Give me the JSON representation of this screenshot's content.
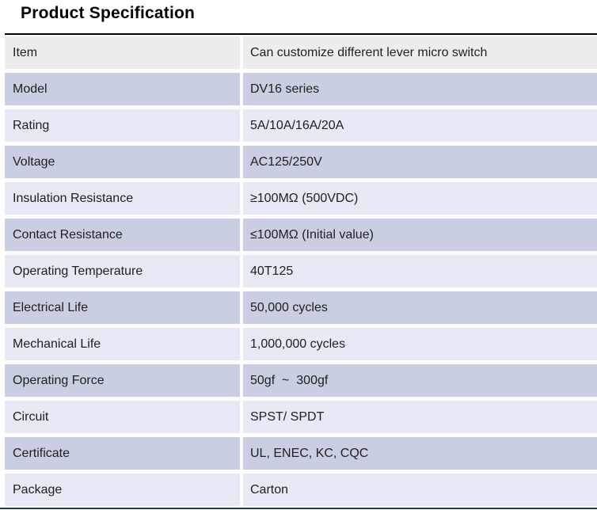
{
  "page": {
    "title": "Product Specification"
  },
  "table": {
    "rows": [
      {
        "label": "Item",
        "value": "Can customize different lever micro switch"
      },
      {
        "label": "Model",
        "value": "DV16 series"
      },
      {
        "label": "Rating",
        "value": "5A/10A/16A/20A"
      },
      {
        "label": "Voltage",
        "value": "AC125/250V"
      },
      {
        "label": "Insulation Resistance",
        "value": "≥100MΩ (500VDC)"
      },
      {
        "label": "Contact Resistance",
        "value": "≤100MΩ (Initial value)"
      },
      {
        "label": "Operating Temperature",
        "value": "40T125"
      },
      {
        "label": "Electrical Life",
        "value": "50,000 cycles"
      },
      {
        "label": "Mechanical Life",
        "value": "1,000,000 cycles"
      },
      {
        "label": "Operating Force",
        "value": "50gf  ~  300gf"
      },
      {
        "label": "Circuit",
        "value": "SPST/ SPDT"
      },
      {
        "label": "Certificate",
        "value": "UL, ENEC, KC, CQC"
      },
      {
        "label": "Package",
        "value": "Carton"
      }
    ],
    "colors": {
      "header_row_bg": "#ededed",
      "row_alt_dark": "#c9cee3",
      "row_alt_light": "#e7e9f4",
      "top_border": "#000000",
      "bottom_border": "#1f3864"
    }
  }
}
